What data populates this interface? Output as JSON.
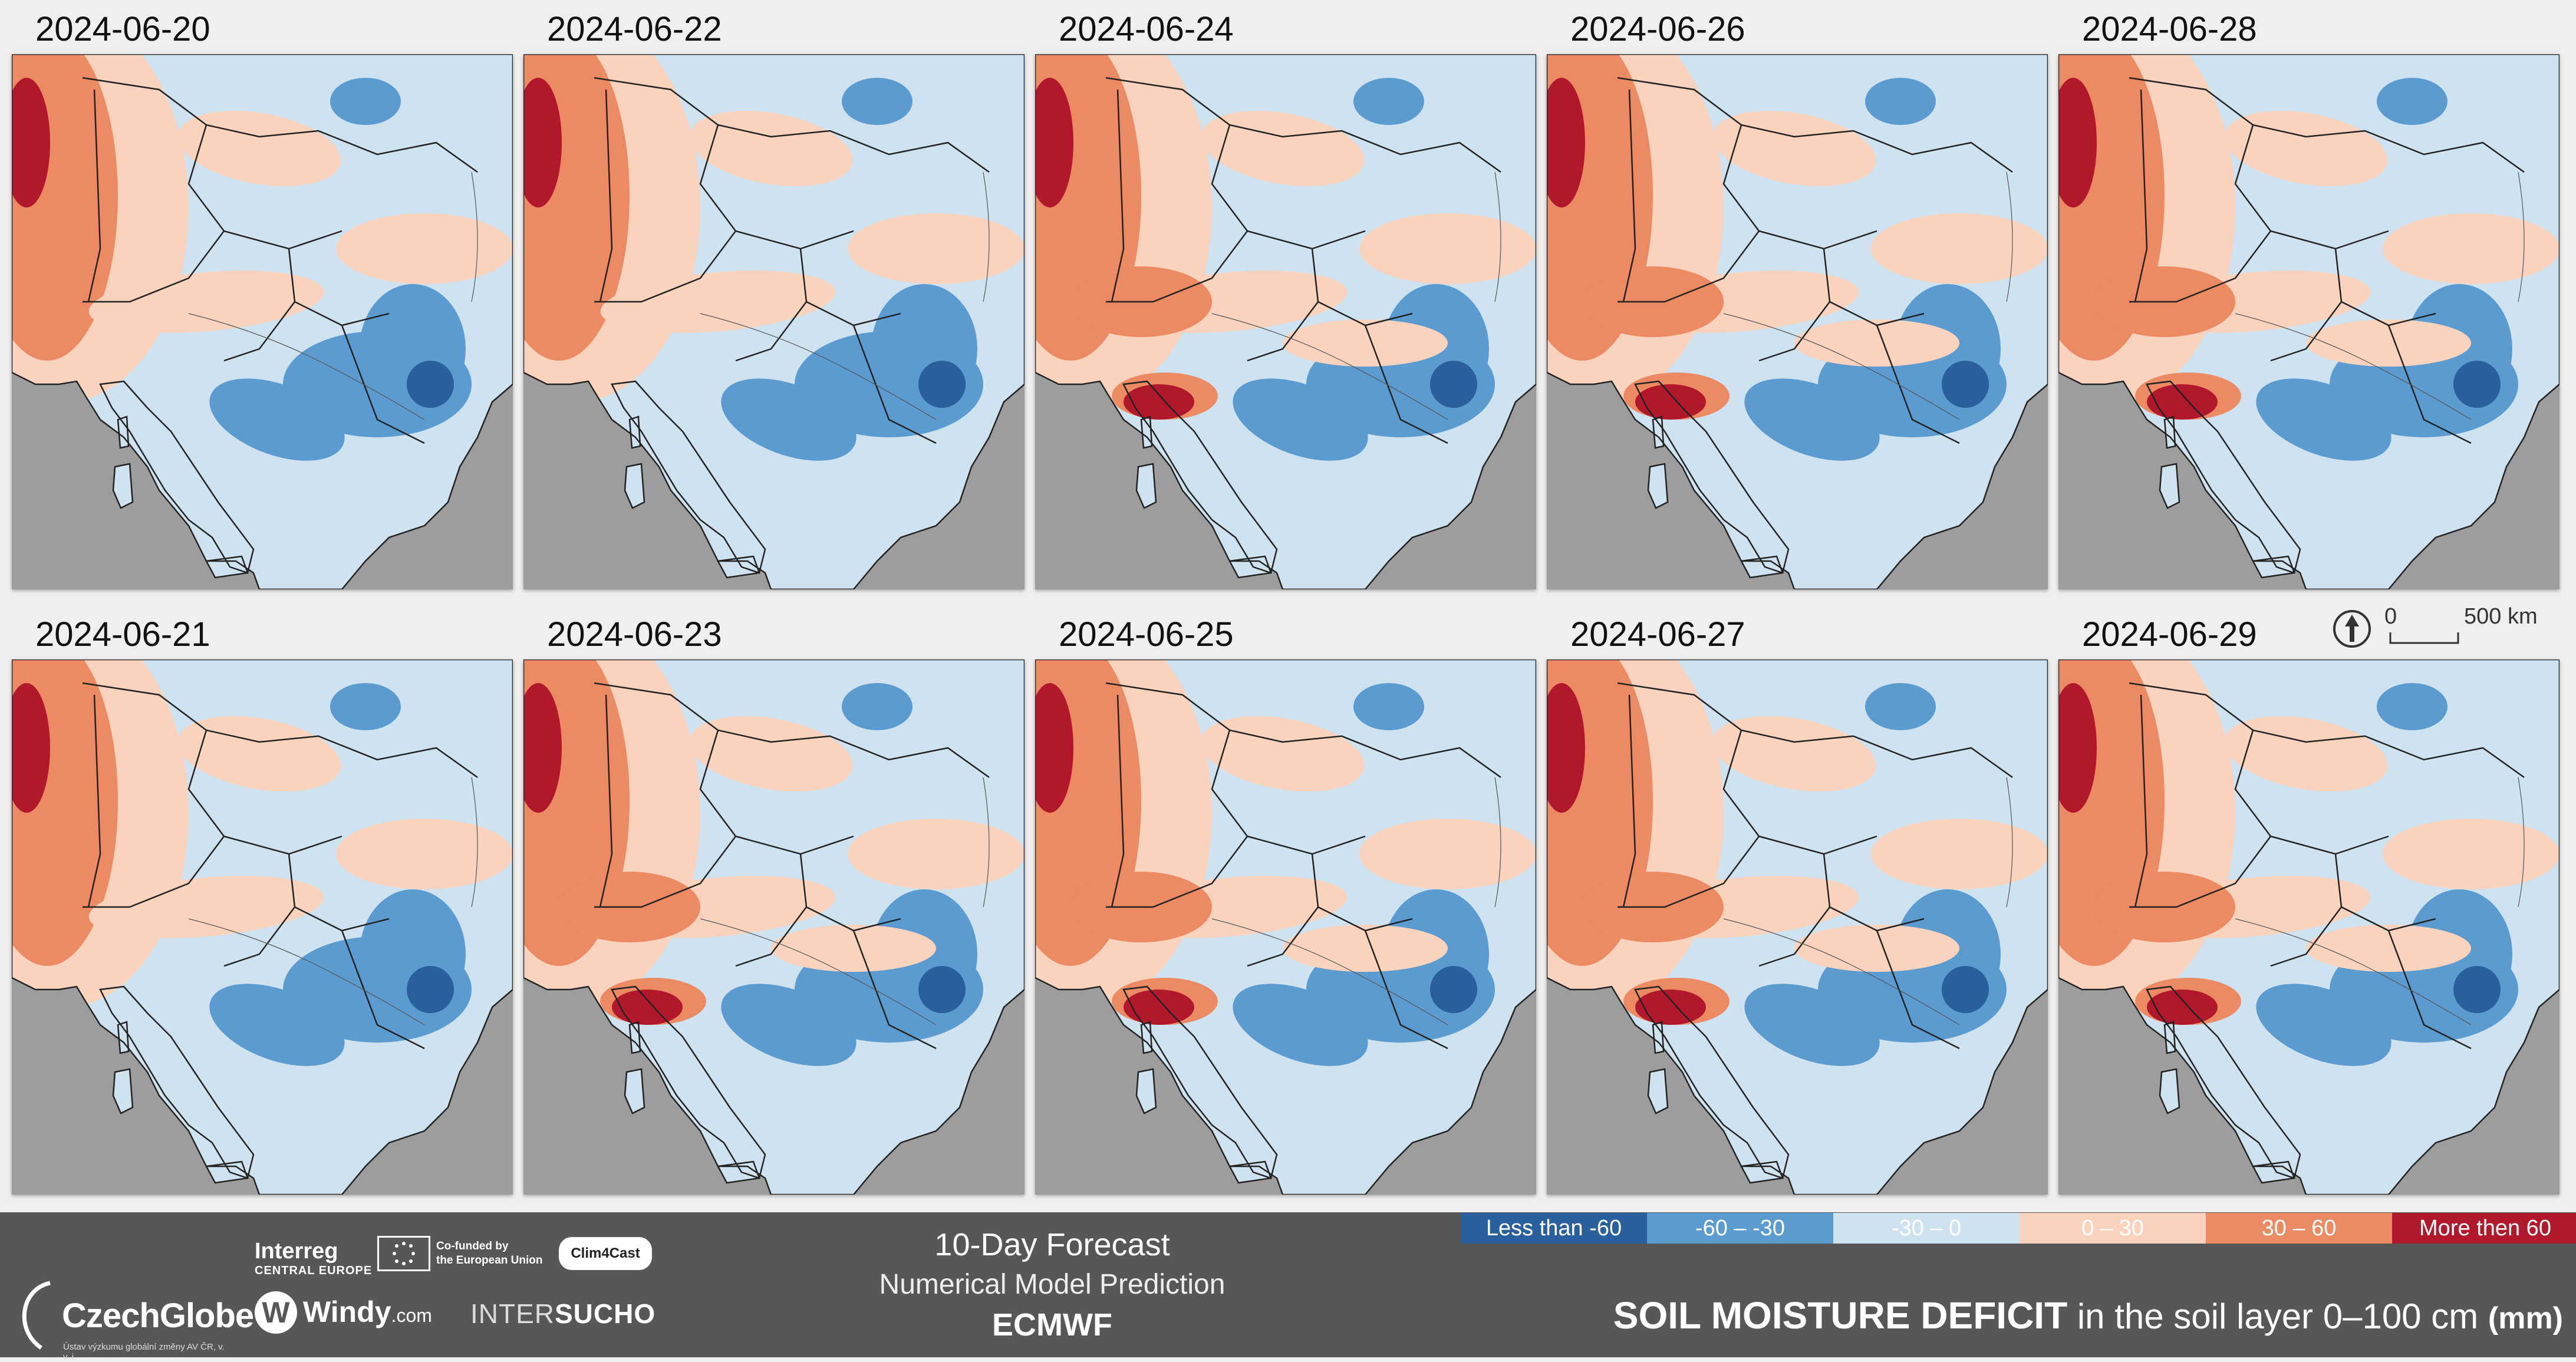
{
  "panels": [
    {
      "date": "2024-06-20",
      "col": 0,
      "row": 0,
      "hot": 0,
      "wet": 0.55
    },
    {
      "date": "2024-06-22",
      "col": 1,
      "row": 0,
      "hot": 0.1,
      "wet": 0.6
    },
    {
      "date": "2024-06-24",
      "col": 2,
      "row": 0,
      "hot": 0.8,
      "wet": 0.45
    },
    {
      "date": "2024-06-26",
      "col": 3,
      "row": 0,
      "hot": 0.85,
      "wet": 0.5
    },
    {
      "date": "2024-06-28",
      "col": 4,
      "row": 0,
      "hot": 0.7,
      "wet": 0.55
    },
    {
      "date": "2024-06-21",
      "col": 0,
      "row": 1,
      "hot": 0.05,
      "wet": 0.55
    },
    {
      "date": "2024-06-23",
      "col": 1,
      "row": 1,
      "hot": 0.7,
      "wet": 0.6
    },
    {
      "date": "2024-06-25",
      "col": 2,
      "row": 1,
      "hot": 0.9,
      "wet": 0.45
    },
    {
      "date": "2024-06-27",
      "col": 3,
      "row": 1,
      "hot": 0.9,
      "wet": 0.5
    },
    {
      "date": "2024-06-29",
      "col": 4,
      "row": 1,
      "hot": 0.85,
      "wet": 0.55
    }
  ],
  "scale_bar": {
    "zero": "0",
    "distance": "500 km"
  },
  "colors": {
    "land_grey": "#9d9d9d",
    "border": "#222222",
    "lt_m60": "#2a5f9e",
    "m60_m30": "#5b9bd0",
    "m30_0": "#cfe2ef",
    "p0_30": "#f9d3bd",
    "p30_60": "#ec8a64",
    "gt60": "#b2182b"
  },
  "footer": {
    "czechglobe_name": "CzechGlobe",
    "czechglobe_sub": "Ústav výzkumu globální změny AV ČR, v. v. i.",
    "interreg": "Interreg",
    "interreg_sub": "CENTRAL EUROPE",
    "eu_line1": "Co-funded by",
    "eu_line2": "the European Union",
    "clim4cast": "Clim4Cast",
    "windy": "Windy",
    "windy_suffix": ".com",
    "intersucho_a": "INTER",
    "intersucho_b": "SUCHO",
    "forecast_title": "10-Day Forecast",
    "forecast_sub": "Numerical Model Prediction",
    "forecast_model": "ECMWF",
    "title_bold": "SOIL MOISTURE DEFICIT",
    "title_rest": "in the soil layer 0–100 cm",
    "title_unit": "(mm)"
  },
  "legend": [
    {
      "label": "Less than -60",
      "color": "#2a5f9e",
      "text_color": "#ffffff"
    },
    {
      "label": "-60 – -30",
      "color": "#5b9bd0",
      "text_color": "#ffffff"
    },
    {
      "label": "-30 – 0",
      "color": "#cfe2ef",
      "text_color": "#ffffff"
    },
    {
      "label": "0 – 30",
      "color": "#f9d3bd",
      "text_color": "#ffffff"
    },
    {
      "label": "30 – 60",
      "color": "#ec8a64",
      "text_color": "#ffffff"
    },
    {
      "label": "More then 60",
      "color": "#b2182b",
      "text_color": "#ffffff"
    }
  ]
}
